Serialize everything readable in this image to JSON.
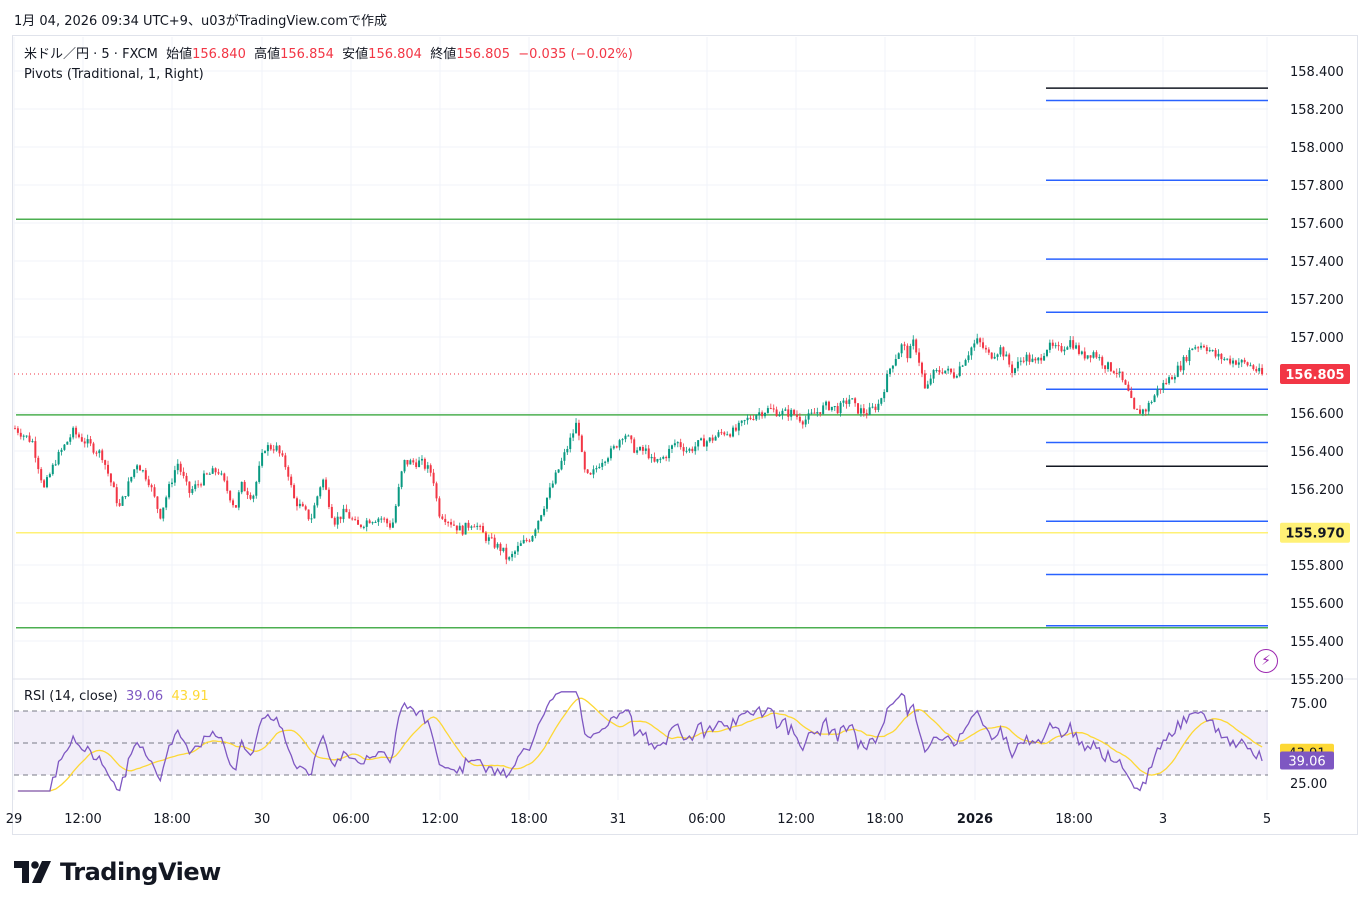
{
  "header": {
    "text": "1月 04, 2026 09:34 UTC+9、u03がTradingView.comで作成"
  },
  "legend": {
    "symbol": "米ドル／円 · 5 · FXCM",
    "open_label": "始値",
    "open": "156.840",
    "high_label": "高値",
    "high": "156.854",
    "low_label": "安値",
    "low": "156.804",
    "close_label": "終値",
    "close": "156.805",
    "change": "−0.035 (−0.02%)",
    "indicator": "Pivots (Traditional, 1, Right)"
  },
  "rsi_legend": {
    "label": "RSI (14, close)",
    "rsi": "39.06",
    "ma": "43.91"
  },
  "brand": {
    "name": "TradingView"
  },
  "colors": {
    "up": "#089981",
    "down": "#f23645",
    "pivot_blue": "#2962ff",
    "pivot_green": "#4caf50",
    "pivot_black": "#131722",
    "yellow": "#fff176",
    "rsi": "#7e57c2",
    "rsi_ma": "#fdd835"
  },
  "chart_data": [
    {
      "type": "candlestick",
      "title": "米ドル／円 · 5 · FXCM",
      "y_ticks": [
        "158.400",
        "158.200",
        "158.000",
        "157.800",
        "157.600",
        "157.400",
        "157.200",
        "157.000",
        "156.600",
        "156.400",
        "156.200",
        "155.800",
        "155.600",
        "155.400",
        "155.200"
      ],
      "y_range": [
        155.2,
        158.4
      ],
      "x_ticks": [
        "29",
        "12:00",
        "18:00",
        "30",
        "06:00",
        "12:00",
        "18:00",
        "31",
        "06:00",
        "12:00",
        "18:00",
        "2026",
        "18:00",
        "3",
        "5"
      ],
      "price_badges": [
        {
          "label": "156.805",
          "value": 156.805,
          "bg": "#f23645",
          "fg": "#ffffff"
        },
        {
          "label": "155.970",
          "value": 155.97,
          "bg": "#fff176",
          "fg": "#131722"
        }
      ],
      "price_path": [
        [
          0,
          156.52
        ],
        [
          3,
          156.45
        ],
        [
          5,
          156.2
        ],
        [
          7,
          156.35
        ],
        [
          10,
          156.5
        ],
        [
          15,
          156.38
        ],
        [
          18,
          156.1
        ],
        [
          21,
          156.34
        ],
        [
          23,
          156.25
        ],
        [
          25,
          156.06
        ],
        [
          28,
          156.34
        ],
        [
          30,
          156.18
        ],
        [
          33,
          156.27
        ],
        [
          35,
          156.3
        ],
        [
          38,
          156.1
        ],
        [
          39,
          156.22
        ],
        [
          41,
          156.16
        ],
        [
          43,
          156.42
        ],
        [
          45,
          156.42
        ],
        [
          47,
          156.3
        ],
        [
          48,
          156.15
        ],
        [
          51,
          156.04
        ],
        [
          53,
          156.26
        ],
        [
          55,
          156.03
        ],
        [
          57,
          156.08
        ],
        [
          59,
          156.0
        ],
        [
          61,
          156.04
        ],
        [
          63,
          156.05
        ],
        [
          65,
          156.0
        ],
        [
          67,
          156.34
        ],
        [
          70,
          156.34
        ],
        [
          72,
          156.28
        ],
        [
          73,
          156.08
        ],
        [
          75,
          156.03
        ],
        [
          77,
          155.98
        ],
        [
          79,
          156.03
        ],
        [
          81,
          155.95
        ],
        [
          83,
          155.9
        ],
        [
          84,
          155.88
        ],
        [
          85,
          155.82
        ],
        [
          87,
          155.9
        ],
        [
          89,
          155.95
        ],
        [
          91,
          156.1
        ],
        [
          93,
          156.25
        ],
        [
          95,
          156.4
        ],
        [
          97,
          156.56
        ],
        [
          98,
          156.3
        ],
        [
          99,
          156.25
        ],
        [
          101,
          156.35
        ],
        [
          103,
          156.4
        ],
        [
          105,
          156.5
        ],
        [
          107,
          156.4
        ],
        [
          109,
          156.4
        ],
        [
          110,
          156.33
        ],
        [
          112,
          156.37
        ],
        [
          114,
          156.45
        ],
        [
          116,
          156.4
        ],
        [
          118,
          156.44
        ],
        [
          120,
          156.46
        ],
        [
          122,
          156.5
        ],
        [
          124,
          156.5
        ],
        [
          126,
          156.56
        ],
        [
          128,
          156.6
        ],
        [
          130,
          156.62
        ],
        [
          132,
          156.6
        ],
        [
          134,
          156.6
        ],
        [
          136,
          156.56
        ],
        [
          138,
          156.6
        ],
        [
          140,
          156.64
        ],
        [
          142,
          156.62
        ],
        [
          144,
          156.68
        ],
        [
          145,
          156.62
        ],
        [
          147,
          156.6
        ],
        [
          149,
          156.65
        ],
        [
          151,
          156.85
        ],
        [
          153,
          156.96
        ],
        [
          154,
          156.9
        ],
        [
          155,
          156.98
        ],
        [
          156,
          156.86
        ],
        [
          157,
          156.7
        ],
        [
          158,
          156.8
        ],
        [
          160,
          156.83
        ],
        [
          162,
          156.8
        ],
        [
          164,
          156.9
        ],
        [
          165,
          156.95
        ],
        [
          166,
          156.98
        ],
        [
          168,
          156.9
        ],
        [
          170,
          156.94
        ],
        [
          172,
          156.82
        ],
        [
          174,
          156.9
        ],
        [
          176,
          156.86
        ],
        [
          178,
          156.95
        ],
        [
          180,
          156.93
        ],
        [
          182,
          156.98
        ],
        [
          184,
          156.9
        ],
        [
          186,
          156.92
        ],
        [
          188,
          156.85
        ],
        [
          190,
          156.82
        ],
        [
          192,
          156.7
        ],
        [
          193,
          156.6
        ],
        [
          195,
          156.62
        ],
        [
          197,
          156.72
        ],
        [
          199,
          156.78
        ],
        [
          201,
          156.85
        ],
        [
          203,
          156.95
        ],
        [
          205,
          156.96
        ],
        [
          207,
          156.9
        ],
        [
          209,
          156.88
        ],
        [
          211,
          156.87
        ],
        [
          213,
          156.85
        ],
        [
          215,
          156.8
        ]
      ],
      "pivot_lines": [
        {
          "value": 158.31,
          "color": "#131722",
          "from": 0.815,
          "to": 0.995
        },
        {
          "value": 158.245,
          "color": "#2962ff",
          "from": 0.815,
          "to": 0.995
        },
        {
          "value": 157.825,
          "color": "#2962ff",
          "from": 0.815,
          "to": 0.995
        },
        {
          "value": 157.62,
          "color": "#4caf50",
          "from": 0.0,
          "to": 0.995
        },
        {
          "value": 157.41,
          "color": "#2962ff",
          "from": 0.815,
          "to": 0.995
        },
        {
          "value": 157.13,
          "color": "#2962ff",
          "from": 0.815,
          "to": 0.995
        },
        {
          "value": 156.725,
          "color": "#2962ff",
          "from": 0.815,
          "to": 0.995
        },
        {
          "value": 156.59,
          "color": "#4caf50",
          "from": 0.0,
          "to": 0.995
        },
        {
          "value": 156.445,
          "color": "#2962ff",
          "from": 0.815,
          "to": 0.995
        },
        {
          "value": 156.32,
          "color": "#131722",
          "from": 0.815,
          "to": 0.995
        },
        {
          "value": 156.03,
          "color": "#2962ff",
          "from": 0.815,
          "to": 0.995
        },
        {
          "value": 155.97,
          "color": "#fff176",
          "from": 0.0,
          "to": 0.995
        },
        {
          "value": 155.75,
          "color": "#2962ff",
          "from": 0.815,
          "to": 0.995
        },
        {
          "value": 155.47,
          "color": "#4caf50",
          "from": 0.0,
          "to": 0.995
        },
        {
          "value": 155.48,
          "color": "#2962ff",
          "from": 0.815,
          "to": 0.995
        }
      ],
      "last_price_line": 156.805
    },
    {
      "type": "line",
      "title": "RSI (14, close)",
      "y_ticks": [
        "75.00",
        "25.00"
      ],
      "y_range": [
        20,
        82
      ],
      "band": [
        30,
        70
      ],
      "midline": 50,
      "badges": [
        {
          "label": "43.91",
          "value": 43.91,
          "bg": "#fdd835",
          "fg": "#131722"
        },
        {
          "label": "39.06",
          "value": 39.06,
          "bg": "#7e57c2",
          "fg": "#ffffff"
        }
      ]
    }
  ]
}
